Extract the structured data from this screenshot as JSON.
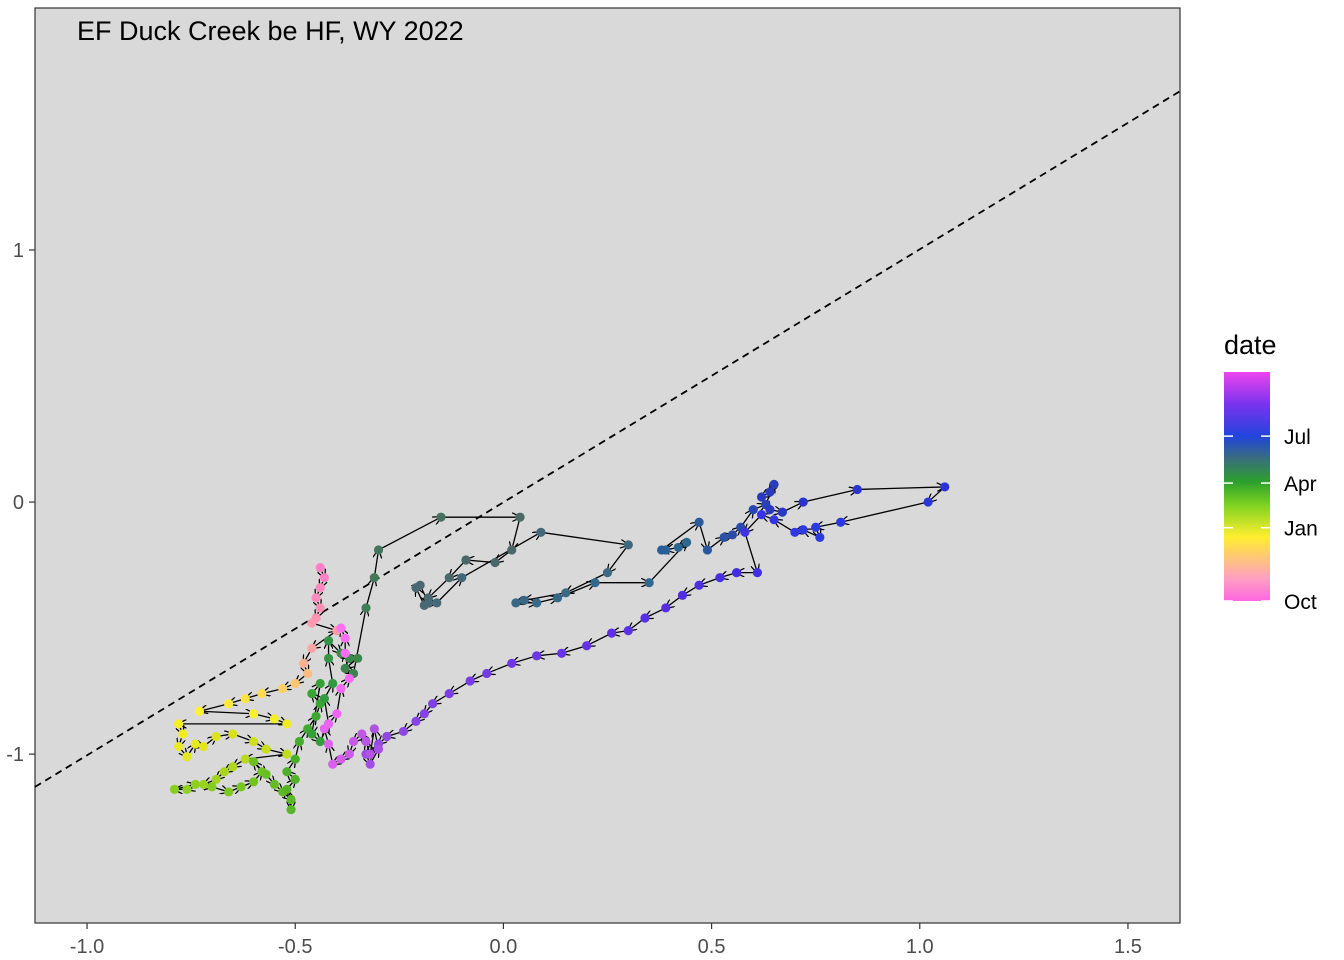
{
  "chart_data": {
    "type": "scatter",
    "title": "EF Duck Creek be HF, WY 2022",
    "xlabel": "",
    "ylabel": "",
    "xlim": [
      -1.125,
      1.625
    ],
    "ylim": [
      -1.67,
      1.96
    ],
    "x_ticks": [
      -1.0,
      -0.5,
      0.0,
      0.5,
      1.0,
      1.5
    ],
    "x_tick_labels": [
      "-1.0",
      "-0.5",
      "0.0",
      "0.5",
      "1.0",
      "1.5"
    ],
    "y_ticks": [
      -1,
      0,
      1
    ],
    "y_tick_labels": [
      "-1",
      "0",
      "1"
    ],
    "grid": false,
    "background": "#d9d9d9",
    "reference_line": {
      "style": "dashed",
      "color": "#000000",
      "points": [
        [
          -1.125,
          -1.13
        ],
        [
          1.625,
          1.63
        ]
      ]
    },
    "legend": {
      "title": "date",
      "type": "colorbar",
      "position": "right",
      "labels": [
        "Jul",
        "Apr",
        "Jan",
        "Oct"
      ],
      "label_positions": [
        0.72,
        0.515,
        0.32,
        0.0
      ],
      "colors": [
        "#ff66e0",
        "#ffa0c0",
        "#ffee30",
        "#7ed321",
        "#2ca02c",
        "#3a6f7a",
        "#2244dd",
        "#7a33ee",
        "#ee44ee"
      ]
    },
    "series": [
      {
        "name": "",
        "points": [
          [
            -0.44,
            -0.26,
            "#ff80c8"
          ],
          [
            -0.43,
            -0.3,
            "#ff84c4"
          ],
          [
            -0.44,
            -0.34,
            "#ff88c0"
          ],
          [
            -0.45,
            -0.38,
            "#ff8cbc"
          ],
          [
            -0.44,
            -0.42,
            "#ff90b8"
          ],
          [
            -0.45,
            -0.46,
            "#ff94b4"
          ],
          [
            -0.46,
            -0.48,
            "#ff98b0"
          ],
          [
            -0.4,
            -0.51,
            "#ff9cac"
          ],
          [
            -0.46,
            -0.58,
            "#ffa4a4"
          ],
          [
            -0.48,
            -0.64,
            "#ffb090"
          ],
          [
            -0.47,
            -0.68,
            "#ffbc80"
          ],
          [
            -0.5,
            -0.72,
            "#ffc870"
          ],
          [
            -0.53,
            -0.74,
            "#ffd060"
          ],
          [
            -0.58,
            -0.76,
            "#ffdc50"
          ],
          [
            -0.62,
            -0.78,
            "#ffe440"
          ],
          [
            -0.66,
            -0.8,
            "#ffe838"
          ],
          [
            -0.73,
            -0.83,
            "#fff030"
          ],
          [
            -0.6,
            -0.84,
            "#fbf02c"
          ],
          [
            -0.55,
            -0.86,
            "#f4ee28"
          ],
          [
            -0.52,
            -0.88,
            "#f0ec24"
          ],
          [
            -0.78,
            -0.88,
            "#f6ee26"
          ],
          [
            -0.77,
            -0.92,
            "#f0ec24"
          ],
          [
            -0.78,
            -0.97,
            "#eaea22"
          ],
          [
            -0.76,
            -1.01,
            "#e4e820"
          ],
          [
            -0.74,
            -0.96,
            "#e6e822"
          ],
          [
            -0.72,
            -0.97,
            "#e2e61e"
          ],
          [
            -0.69,
            -0.93,
            "#dde41c"
          ],
          [
            -0.65,
            -0.92,
            "#d8e21c"
          ],
          [
            -0.6,
            -0.95,
            "#d0e01c"
          ],
          [
            -0.57,
            -0.98,
            "#c8de1c"
          ],
          [
            -0.52,
            -1.0,
            "#c0dc1c"
          ],
          [
            -0.62,
            -1.02,
            "#b8da1c"
          ],
          [
            -0.65,
            -1.05,
            "#b0d81c"
          ],
          [
            -0.67,
            -1.07,
            "#a8d61c"
          ],
          [
            -0.69,
            -1.1,
            "#a0d41e"
          ],
          [
            -0.72,
            -1.12,
            "#98d21e"
          ],
          [
            -0.76,
            -1.14,
            "#90d020"
          ],
          [
            -0.79,
            -1.14,
            "#88ce20"
          ],
          [
            -0.74,
            -1.12,
            "#8ccf20"
          ],
          [
            -0.7,
            -1.13,
            "#84cc20"
          ],
          [
            -0.66,
            -1.15,
            "#7cc820"
          ],
          [
            -0.63,
            -1.13,
            "#78c620"
          ],
          [
            -0.6,
            -1.11,
            "#74c420"
          ],
          [
            -0.58,
            -1.07,
            "#70c220"
          ],
          [
            -0.6,
            -1.03,
            "#6cc020"
          ],
          [
            -0.57,
            -1.08,
            "#68be22"
          ],
          [
            -0.55,
            -1.12,
            "#64bc22"
          ],
          [
            -0.53,
            -1.15,
            "#60ba22"
          ],
          [
            -0.51,
            -1.18,
            "#5cb822"
          ],
          [
            -0.51,
            -1.22,
            "#58b624"
          ],
          [
            -0.52,
            -1.14,
            "#54b424"
          ],
          [
            -0.5,
            -1.1,
            "#50b226"
          ],
          [
            -0.52,
            -1.07,
            "#4cb028"
          ],
          [
            -0.5,
            -1.02,
            "#48ae2a"
          ],
          [
            -0.49,
            -0.95,
            "#44ac2c"
          ],
          [
            -0.47,
            -0.9,
            "#40aa2e"
          ],
          [
            -0.45,
            -0.85,
            "#3ca830"
          ],
          [
            -0.44,
            -0.8,
            "#3aa632"
          ],
          [
            -0.46,
            -0.76,
            "#38a434"
          ],
          [
            -0.44,
            -0.72,
            "#36a236"
          ],
          [
            -0.46,
            -0.92,
            "#34a038"
          ],
          [
            -0.44,
            -0.95,
            "#349e3a"
          ],
          [
            -0.42,
            -0.88,
            "#349c3c"
          ],
          [
            -0.43,
            -0.78,
            "#349a3e"
          ],
          [
            -0.41,
            -0.72,
            "#349840"
          ],
          [
            -0.42,
            -0.62,
            "#349642"
          ],
          [
            -0.42,
            -0.55,
            "#349444"
          ],
          [
            -0.39,
            -0.6,
            "#369046"
          ],
          [
            -0.37,
            -0.62,
            "#388c48"
          ],
          [
            -0.35,
            -0.62,
            "#3a884a"
          ],
          [
            -0.38,
            -0.66,
            "#3c844c"
          ],
          [
            -0.36,
            -0.68,
            "#3e8050"
          ],
          [
            -0.33,
            -0.42,
            "#407c54"
          ],
          [
            -0.31,
            -0.3,
            "#427858"
          ],
          [
            -0.3,
            -0.19,
            "#44745c"
          ],
          [
            -0.15,
            -0.06,
            "#467060"
          ],
          [
            0.04,
            -0.06,
            "#486c64"
          ],
          [
            0.02,
            -0.19,
            "#4a6866"
          ],
          [
            -0.02,
            -0.24,
            "#4a6868"
          ],
          [
            -0.09,
            -0.23,
            "#4a686a"
          ],
          [
            -0.13,
            -0.3,
            "#4a686c"
          ],
          [
            -0.18,
            -0.38,
            "#4a686e"
          ],
          [
            -0.19,
            -0.41,
            "#4a6870"
          ],
          [
            -0.21,
            -0.34,
            "#4a6872"
          ],
          [
            -0.2,
            -0.33,
            "#4a6874"
          ],
          [
            -0.18,
            -0.4,
            "#486876"
          ],
          [
            -0.16,
            -0.4,
            "#466878"
          ],
          [
            -0.1,
            -0.3,
            "#44687a"
          ],
          [
            0.09,
            -0.12,
            "#42687c"
          ],
          [
            0.3,
            -0.17,
            "#40687e"
          ],
          [
            0.25,
            -0.28,
            "#3e6880"
          ],
          [
            0.15,
            -0.36,
            "#3c6882"
          ],
          [
            0.05,
            -0.39,
            "#3a6884"
          ],
          [
            0.03,
            -0.4,
            "#386886"
          ],
          [
            0.08,
            -0.4,
            "#366888"
          ],
          [
            0.13,
            -0.38,
            "#34688a"
          ],
          [
            0.22,
            -0.32,
            "#32688c"
          ],
          [
            0.35,
            -0.32,
            "#30688e"
          ],
          [
            0.44,
            -0.16,
            "#2e6890"
          ],
          [
            0.42,
            -0.18,
            "#2c6592"
          ],
          [
            0.39,
            -0.19,
            "#2a6294"
          ],
          [
            0.38,
            -0.19,
            "#2a5e98"
          ],
          [
            0.47,
            -0.08,
            "#2a5a9c"
          ],
          [
            0.49,
            -0.19,
            "#2a56a0"
          ],
          [
            0.53,
            -0.14,
            "#2a52a4"
          ],
          [
            0.55,
            -0.13,
            "#2a4ea8"
          ],
          [
            0.57,
            -0.1,
            "#2a4aac"
          ],
          [
            0.6,
            -0.03,
            "#2a46b0"
          ],
          [
            0.63,
            -0.01,
            "#2a42b4"
          ],
          [
            0.65,
            0.07,
            "#2a3eb8"
          ],
          [
            0.64,
            0.04,
            "#2a3cbc"
          ],
          [
            0.62,
            0.02,
            "#2a3ac0"
          ],
          [
            0.64,
            -0.03,
            "#2a38c4"
          ],
          [
            0.67,
            -0.04,
            "#2a36c8"
          ],
          [
            0.72,
            0.0,
            "#2a34cc"
          ],
          [
            0.85,
            0.05,
            "#2a34d0"
          ],
          [
            1.06,
            0.06,
            "#2a34d4"
          ],
          [
            1.02,
            0.0,
            "#2a36d8"
          ],
          [
            0.81,
            -0.08,
            "#2a38dc"
          ],
          [
            0.75,
            -0.1,
            "#2a3ade"
          ],
          [
            0.76,
            -0.14,
            "#2c3ae0"
          ],
          [
            0.72,
            -0.11,
            "#2e3ae2"
          ],
          [
            0.7,
            -0.12,
            "#3038e4"
          ],
          [
            0.65,
            -0.07,
            "#3436e4"
          ],
          [
            0.62,
            -0.05,
            "#3834e4"
          ],
          [
            0.58,
            -0.12,
            "#3c32e4"
          ],
          [
            0.61,
            -0.28,
            "#4030e4"
          ],
          [
            0.56,
            -0.28,
            "#442ee4"
          ],
          [
            0.52,
            -0.3,
            "#482ee4"
          ],
          [
            0.47,
            -0.33,
            "#4c2ee4"
          ],
          [
            0.43,
            -0.37,
            "#502ee4"
          ],
          [
            0.39,
            -0.42,
            "#542ee4"
          ],
          [
            0.34,
            -0.46,
            "#582ee4"
          ],
          [
            0.3,
            -0.51,
            "#5c30e4"
          ],
          [
            0.26,
            -0.52,
            "#6030e4"
          ],
          [
            0.2,
            -0.57,
            "#6432e4"
          ],
          [
            0.14,
            -0.6,
            "#6834e4"
          ],
          [
            0.08,
            -0.61,
            "#6c36e4"
          ],
          [
            0.02,
            -0.64,
            "#7038e4"
          ],
          [
            -0.04,
            -0.68,
            "#743ae4"
          ],
          [
            -0.08,
            -0.71,
            "#783ce4"
          ],
          [
            -0.13,
            -0.76,
            "#7c3ee4"
          ],
          [
            -0.17,
            -0.8,
            "#8040e4"
          ],
          [
            -0.19,
            -0.84,
            "#8442e4"
          ],
          [
            -0.21,
            -0.87,
            "#8844e4"
          ],
          [
            -0.24,
            -0.91,
            "#8c46e4"
          ],
          [
            -0.28,
            -0.93,
            "#9048e4"
          ],
          [
            -0.3,
            -0.96,
            "#964ae4"
          ],
          [
            -0.33,
            -1.0,
            "#9c4ce4"
          ],
          [
            -0.32,
            -1.04,
            "#a24ee4"
          ],
          [
            -0.3,
            -0.98,
            "#a850e4"
          ],
          [
            -0.31,
            -0.9,
            "#ae52e4"
          ],
          [
            -0.32,
            -1.0,
            "#b454e4"
          ],
          [
            -0.33,
            -0.95,
            "#ba56e4"
          ],
          [
            -0.34,
            -0.92,
            "#c058e4"
          ],
          [
            -0.36,
            -0.95,
            "#c65ae6"
          ],
          [
            -0.37,
            -1.0,
            "#cc5ce8"
          ],
          [
            -0.39,
            -1.02,
            "#d25eea"
          ],
          [
            -0.41,
            -1.04,
            "#d860ec"
          ],
          [
            -0.42,
            -0.96,
            "#de62ee"
          ],
          [
            -0.43,
            -0.9,
            "#e464f0"
          ],
          [
            -0.42,
            -0.88,
            "#ea66f2"
          ],
          [
            -0.4,
            -0.84,
            "#f066f4"
          ],
          [
            -0.39,
            -0.74,
            "#f468f4"
          ],
          [
            -0.37,
            -0.7,
            "#f86af4"
          ],
          [
            -0.38,
            -0.6,
            "#fb6cf2"
          ],
          [
            -0.38,
            -0.54,
            "#fd6ef0"
          ],
          [
            -0.39,
            -0.5,
            "#ff70ee"
          ]
        ]
      }
    ]
  }
}
